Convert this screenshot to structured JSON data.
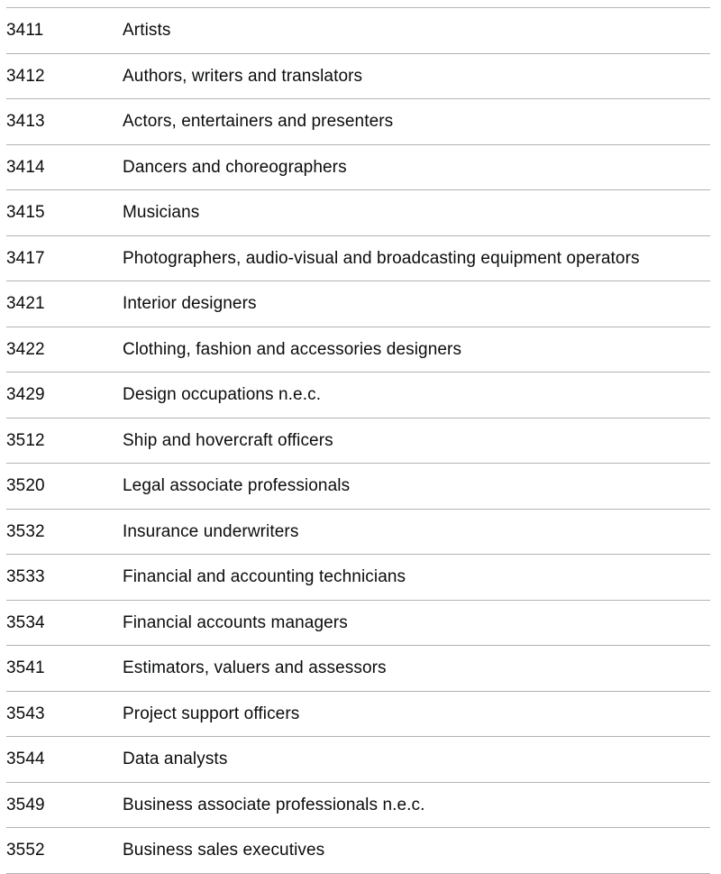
{
  "table": {
    "name": "occupation-codes-table",
    "columns": [
      "code",
      "occupation"
    ],
    "rows": [
      {
        "code": "3411",
        "occupation": "Artists"
      },
      {
        "code": "3412",
        "occupation": "Authors, writers and translators"
      },
      {
        "code": "3413",
        "occupation": "Actors, entertainers and presenters"
      },
      {
        "code": "3414",
        "occupation": "Dancers and choreographers"
      },
      {
        "code": "3415",
        "occupation": "Musicians"
      },
      {
        "code": "3417",
        "occupation": "Photographers, audio-visual and broadcasting equipment operators"
      },
      {
        "code": "3421",
        "occupation": "Interior designers"
      },
      {
        "code": "3422",
        "occupation": "Clothing, fashion and accessories designers"
      },
      {
        "code": "3429",
        "occupation": "Design occupations n.e.c."
      },
      {
        "code": "3512",
        "occupation": "Ship and hovercraft officers"
      },
      {
        "code": "3520",
        "occupation": "Legal associate professionals"
      },
      {
        "code": "3532",
        "occupation": "Insurance underwriters"
      },
      {
        "code": "3533",
        "occupation": "Financial and accounting technicians"
      },
      {
        "code": "3534",
        "occupation": "Financial accounts managers"
      },
      {
        "code": "3541",
        "occupation": "Estimators, valuers and assessors"
      },
      {
        "code": "3543",
        "occupation": "Project support officers"
      },
      {
        "code": "3544",
        "occupation": "Data analysts"
      },
      {
        "code": "3549",
        "occupation": "Business associate professionals n.e.c."
      },
      {
        "code": "3552",
        "occupation": "Business sales executives"
      }
    ]
  },
  "colors": {
    "text": "#0b0c0c",
    "row_border": "#b1b4b6",
    "background": "#ffffff"
  }
}
